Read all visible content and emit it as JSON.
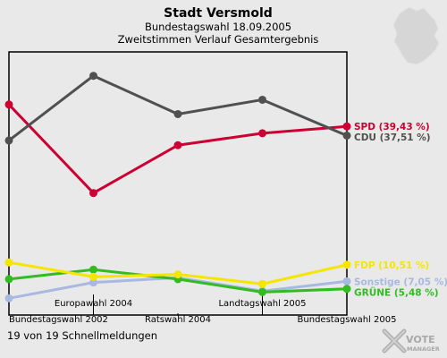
{
  "header": {
    "title": "Stadt Versmold",
    "subtitle1": "Bundestagswahl 18.09.2005",
    "subtitle2": "Zweitstimmen Verlauf Gesamtergebnis"
  },
  "footer": {
    "status": "19 von 19 Schnellmeldungen"
  },
  "logo": {
    "line1": "VOTE",
    "line2": "MANAGER",
    "icon": "vote-cross-icon"
  },
  "map_icon": "germany-map-icon",
  "chart_data": {
    "type": "line",
    "title": "Stadt Versmold",
    "subtitle": "Bundestagswahl 18.09.2005 / Zweitstimmen Verlauf Gesamtergebnis",
    "categories": [
      "Bundestagswahl 2002",
      "Europawahl 2004",
      "Ratswahl 2004",
      "Landtagswahl 2005",
      "Bundestagswahl 2005"
    ],
    "ylim": [
      0,
      55
    ],
    "grid": false,
    "legend": "right-end-labels",
    "series": [
      {
        "name": "SPD",
        "label": "SPD (39,43 %)",
        "color": "#cc0033",
        "values": [
          44.0,
          25.5,
          35.5,
          38.0,
          39.43
        ]
      },
      {
        "name": "CDU",
        "label": "CDU (37,51 %)",
        "color": "#505050",
        "values": [
          36.5,
          50.0,
          42.0,
          45.0,
          37.51
        ]
      },
      {
        "name": "FDP",
        "label": "FDP (10,51 %)",
        "color": "#f5e600",
        "values": [
          11.0,
          8.0,
          8.5,
          6.5,
          10.51
        ]
      },
      {
        "name": "Sonstige",
        "label": "Sonstige (7,05 %)",
        "color": "#a8b8e0",
        "values": [
          3.5,
          6.8,
          7.8,
          5.0,
          7.05
        ]
      },
      {
        "name": "GRÜNE",
        "label": "GRÜNE (5,48 %)",
        "color": "#33bb22",
        "values": [
          7.5,
          9.5,
          7.5,
          4.8,
          5.48
        ]
      }
    ]
  }
}
